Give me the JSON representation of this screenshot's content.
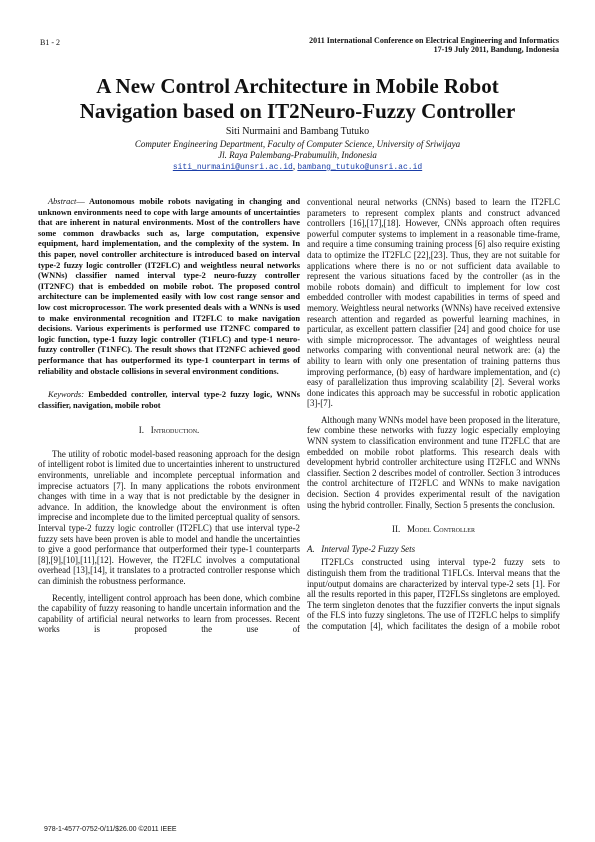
{
  "header": {
    "code": "B1 - 2",
    "conference": "2011 International Conference on Electrical Engineering and Informatics",
    "date": "17-19 July 2011, Bandung, Indonesia"
  },
  "title": {
    "line1": "A New Control Architecture in Mobile Robot",
    "line2": "Navigation based on IT2Neuro-Fuzzy Controller"
  },
  "authors": "Siti Nurmaini and Bambang Tutuko",
  "affiliation": "Computer Engineering Department, Faculty of Computer Science, University of Sriwijaya",
  "address": "Jl. Raya Palembang-Prabumulih, Indonesia",
  "emails": [
    "siti_nurmaini@unsri.ac.id",
    "bambang_tutuko@unsri.ac.id"
  ],
  "abstract": {
    "label": "Abstract",
    "text": "Autonomous mobile robots navigating in changing and unknown environments need to cope with large amounts of uncertainties that are inherent in natural environments. Most of the controllers have some common drawbacks such as, large computation, expensive equipment, hard implementation, and the complexity of the system. In this paper, novel controller architecture is introduced based on interval type-2 fuzzy logic controller (IT2FLC) and weightless neural networks (WNNs) classifier named interval type-2 neuro-fuzzy controller (IT2NFC) that is embedded on mobile robot. The proposed control architecture can be implemented easily with low cost range sensor and low cost microprocessor. The work presented deals with a WNNs is used to make environmental recognition and IT2FLC to make navigation decisions. Various experiments is performed use IT2NFC compared to logic function, type-1 fuzzy logic controller (T1FLC) and type-1 neuro-fuzzy controller (T1NFC). The result shows that IT2NFC achieved good performance that has outperformed its type-1 counterpart in terms of reliability and obstacle collisions in several environment conditions."
  },
  "keywords": {
    "label": "Keywords:",
    "text": "Embedded controller, interval type-2 fuzzy logic, WNNs classifier, navigation, mobile robot"
  },
  "section1": {
    "number": "I.",
    "title": "Introduction.",
    "paragraphs": [
      "The utility of robotic model-based reasoning approach for the design of intelligent robot is limited due to uncertainties inherent to unstructured environments, unreliable and incomplete perceptual information and imprecise actuators [7]. In many applications the robots environment changes with time in a way that is not predictable by the designer in advance. In addition, the knowledge about the environment is often imprecise and incomplete due to the limited perceptual quality of sensors. Interval type-2 fuzzy logic controller (IT2FLC) that use interval type-2 fuzzy sets have been proven is able to model and handle the uncertainties to give a good performance that outperformed their type-1 counterparts [8],[9],[10],[11],[12]. However, the IT2FLC involves a computational overhead [13],[14], it translates to a protracted controller response which can diminish the robustness performance.",
      "Recently, intelligent control approach has been done, which combine the capability of fuzzy reasoning to handle uncertain information and the capability of artificial neural networks to learn from processes. Recent works is proposed the use of",
      "conventional neural networks (CNNs) based to learn the IT2FLC parameters to represent complex plants and construct advanced controllers [16],[17],[18]. However, CNNs approach often requires powerful computer systems to implement in a reasonable time-frame, and require a time consuming training process [6] also require existing data to optimize the IT2FLC [22],[23]. Thus, they are not suitable for applications where there is no or not sufficient data available to represent the various situations faced by the controller (as in the mobile robots domain) and difficult to implement for low cost embedded controller with modest capabilities in terms of speed and memory. Weightless neural networks (WNNs) have received extensive research attention and regarded as powerful learning machines, in particular, as excellent pattern classifier [24] and good choice for use with simple microprocessor. The advantages of weightless neural networks comparing with conventional neural network are: (a) the ability to learn with only one presentation of training patterns thus improving performance, (b) easy of hardware implementation, and (c) easy of parallelization thus improving scalability [2]. Several works done indicates this approach may be successful in robotic application [3]-[7].",
      "Although many WNNs model have been proposed in the literature, few combine these networks with fuzzy logic especially employing WNN system to classification environment and tune IT2FLC that are embedded on mobile robot platforms. This research deals with development hybrid controller architecture using IT2FLC and WNNs classifier. Section 2 describes model of controller. Section 3 introduces the control architecture of IT2FLC and WNNs to make navigation decision. Section 4 provides experimental result of the navigation using the hybrid controller. Finally, Section 5 presents the conclusion."
    ]
  },
  "section2": {
    "number": "II.",
    "title": "Model Controller",
    "subsection": {
      "number": "A.",
      "title": "Interval Type-2 Fuzzy Sets",
      "paragraph": "IT2FLCs constructed using interval type-2 fuzzy sets to distinguish them from the traditional T1FLCs. Interval means that the input/output domains are characterized by interval type-2 sets [1]. For all the results reported in this paper, IT2FLSs singletons are employed. The term singleton denotes that the fuzzifier converts the input signals of the FLS into fuzzy singletons. The use of IT2FLC helps to simplify the computation [4], which facilitates the design of a mobile robot"
    }
  },
  "footer": "978-1-4577-0752-0/11/$26.00 ©2011 IEEE"
}
